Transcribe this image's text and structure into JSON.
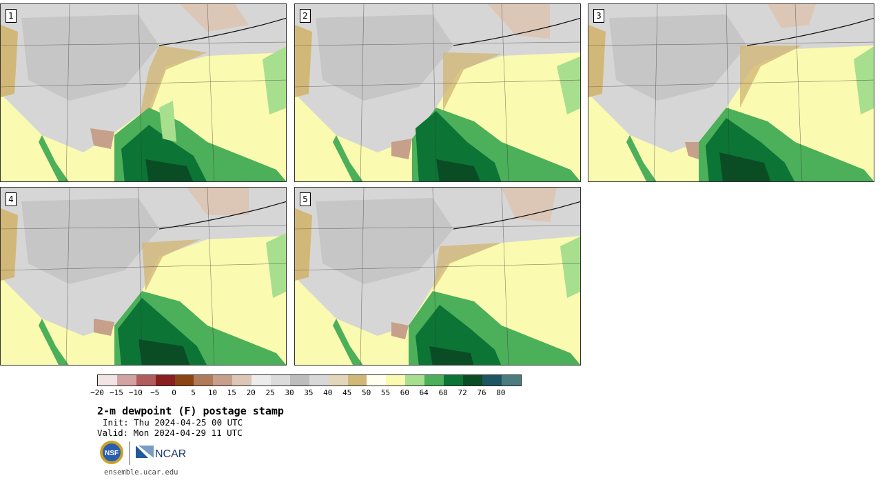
{
  "panels": [
    {
      "label": "1"
    },
    {
      "label": "2"
    },
    {
      "label": "3"
    },
    {
      "label": "4"
    },
    {
      "label": "5"
    }
  ],
  "colorbar": {
    "colors": [
      "#f1e5e5",
      "#d3a3a3",
      "#b05d5d",
      "#8b1e1e",
      "#8b4513",
      "#b07b58",
      "#c6a08a",
      "#dcc6b6",
      "#ececec",
      "#dbdbdb",
      "#bdbdbd",
      "#d8d8d8",
      "#e3d7bb",
      "#d2b878",
      "#fffff0",
      "#fafab0",
      "#a8df8e",
      "#4caf5a",
      "#0c7535",
      "#0a4d25",
      "#1e5563",
      "#4c7b80"
    ],
    "ticks": [
      "−20",
      "−15",
      "−10",
      "−5",
      "0",
      "5",
      "10",
      "15",
      "20",
      "25",
      "30",
      "35",
      "40",
      "45",
      "50",
      "55",
      "60",
      "64",
      "68",
      "72",
      "76",
      "80"
    ]
  },
  "title": "2-m dewpoint (F) postage stamp",
  "init": "Init: Thu 2024-04-25 00 UTC",
  "valid": "Valid: Mon 2024-04-29 11 UTC",
  "logos": {
    "nsf": "NSF",
    "ncar": "NCAR"
  },
  "url": "ensemble.ucar.edu"
}
